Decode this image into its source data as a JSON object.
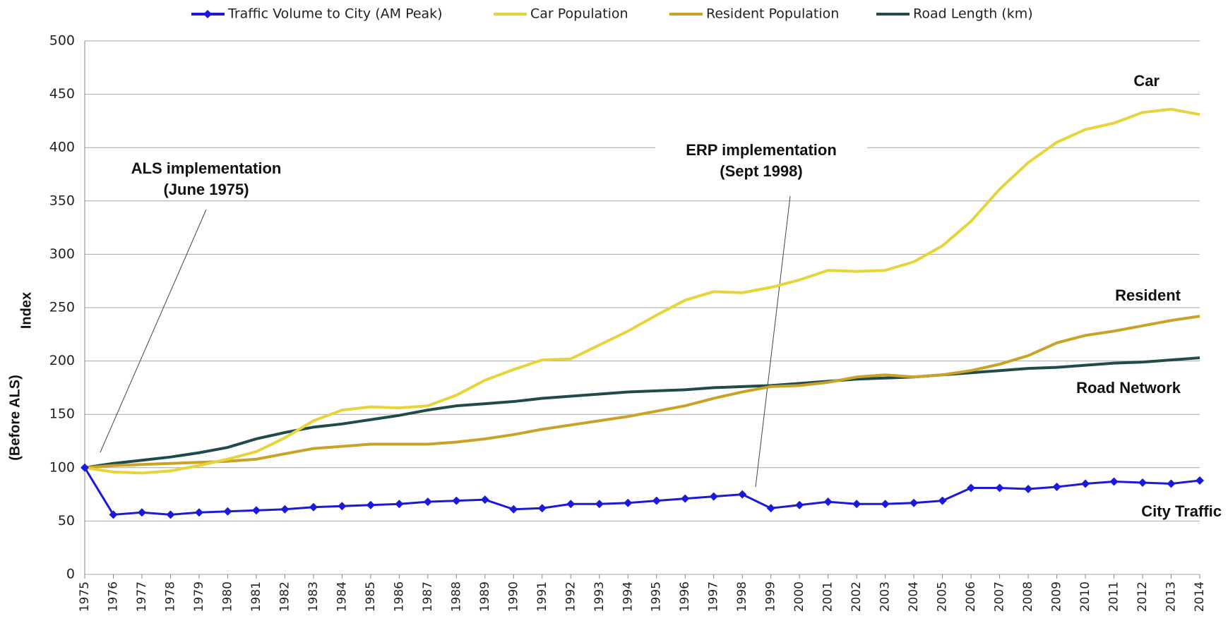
{
  "chart_data": {
    "type": "line",
    "x": [
      1975,
      1976,
      1977,
      1978,
      1979,
      1980,
      1981,
      1982,
      1983,
      1984,
      1985,
      1986,
      1987,
      1988,
      1989,
      1990,
      1991,
      1992,
      1993,
      1994,
      1995,
      1996,
      1997,
      1998,
      1999,
      2000,
      2001,
      2002,
      2003,
      2004,
      2005,
      2006,
      2007,
      2008,
      2009,
      2010,
      2011,
      2012,
      2013,
      2014
    ],
    "series": [
      {
        "name": "Traffic Volume to City (AM Peak)",
        "color": "#1a1ad8",
        "marker": "diamond",
        "values": [
          100,
          56,
          58,
          56,
          58,
          59,
          60,
          61,
          63,
          64,
          65,
          66,
          68,
          69,
          70,
          61,
          62,
          66,
          66,
          67,
          69,
          71,
          73,
          75,
          62,
          65,
          68,
          66,
          66,
          67,
          69,
          81,
          81,
          80,
          82,
          85,
          87,
          86,
          85,
          88
        ]
      },
      {
        "name": "Car Population",
        "color": "#e6d43a",
        "values": [
          100,
          96,
          95,
          97,
          102,
          108,
          115,
          128,
          144,
          154,
          157,
          156,
          158,
          168,
          182,
          192,
          201,
          202,
          215,
          228,
          243,
          257,
          265,
          264,
          269,
          276,
          285,
          284,
          285,
          293,
          308,
          331,
          361,
          386,
          405,
          417,
          423,
          433,
          436,
          431
        ]
      },
      {
        "name": "Resident Population",
        "color": "#c9a227",
        "values": [
          100,
          102,
          103,
          104,
          105,
          106,
          108,
          113,
          118,
          120,
          122,
          122,
          122,
          124,
          127,
          131,
          136,
          140,
          144,
          148,
          153,
          158,
          165,
          171,
          176,
          177,
          180,
          185,
          187,
          185,
          187,
          191,
          197,
          205,
          217,
          224,
          228,
          233,
          238,
          242
        ]
      },
      {
        "name": "Road Length (km)",
        "color": "#1f4b4b",
        "values": [
          100,
          104,
          107,
          110,
          114,
          119,
          127,
          133,
          138,
          141,
          145,
          149,
          154,
          158,
          160,
          162,
          165,
          167,
          169,
          171,
          172,
          173,
          175,
          176,
          177,
          179,
          181,
          183,
          184,
          185,
          187,
          189,
          191,
          193,
          194,
          196,
          198,
          199,
          201,
          203
        ]
      }
    ],
    "xlim": [
      1975,
      2014
    ],
    "ylim": [
      0,
      500
    ],
    "yticks": [
      0,
      50,
      100,
      150,
      200,
      250,
      300,
      350,
      400,
      450,
      500
    ],
    "grid": true,
    "ylabel": [
      "Index",
      "(Before ALS)"
    ],
    "annotations": [
      [
        "ALS implementation",
        "(June 1975)"
      ],
      [
        "ERP implementation",
        "(Sept 1998)"
      ]
    ],
    "line_labels": [
      "Car",
      "Resident",
      "Road Network",
      "City Traffic"
    ],
    "legend": "top"
  }
}
